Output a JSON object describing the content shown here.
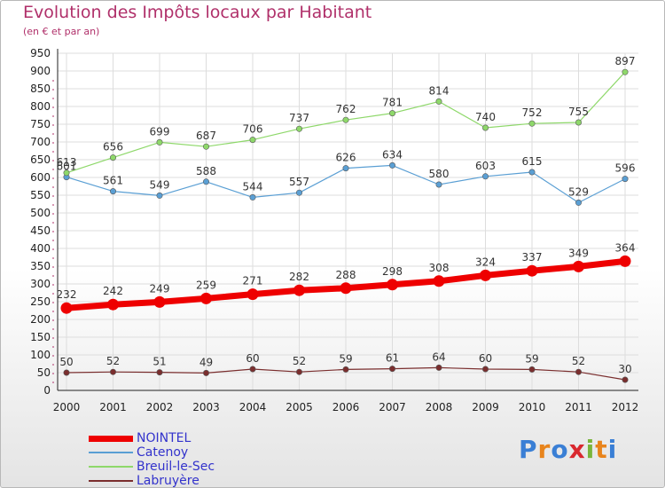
{
  "title": "Evolution des Impôts locaux par Habitant",
  "subtitle": "(en € et par an)",
  "logo": {
    "letters": [
      "P",
      "r",
      "o",
      "x",
      "i",
      "t",
      "i"
    ],
    "colors": [
      "#3a7fd5",
      "#e8841c",
      "#3a7fd5",
      "#d9282f",
      "#7ab53b",
      "#e8841c",
      "#3a7fd5"
    ]
  },
  "chart_data": {
    "type": "line",
    "title": "Evolution des Impôts locaux par Habitant",
    "subtitle": "(en € et par an)",
    "x": [
      "2000",
      "2001",
      "2002",
      "2003",
      "2004",
      "2005",
      "2006",
      "2007",
      "2008",
      "2009",
      "2010",
      "2011",
      "2012"
    ],
    "ylim": [
      0,
      950
    ],
    "yticks": [
      0,
      50,
      100,
      150,
      200,
      250,
      300,
      350,
      400,
      450,
      500,
      550,
      600,
      650,
      700,
      750,
      800,
      850,
      900,
      950
    ],
    "grid": true,
    "legend_position": "bottom-left",
    "series": [
      {
        "name": "NOINTEL",
        "color": "#ee0000",
        "width": 7,
        "values": [
          232,
          242,
          249,
          259,
          271,
          282,
          288,
          298,
          308,
          324,
          337,
          349,
          364
        ]
      },
      {
        "name": "Catenoy",
        "color": "#5a9fd4",
        "width": 1.2,
        "values": [
          601,
          561,
          549,
          588,
          544,
          557,
          626,
          634,
          580,
          603,
          615,
          529,
          596
        ]
      },
      {
        "name": "Breuil-le-Sec",
        "color": "#8ed86a",
        "width": 1.2,
        "values": [
          613,
          656,
          699,
          687,
          706,
          737,
          762,
          781,
          814,
          740,
          752,
          755,
          897
        ]
      },
      {
        "name": "Labruyère",
        "color": "#7a2e2e",
        "width": 1.2,
        "values": [
          50,
          52,
          51,
          49,
          60,
          52,
          59,
          61,
          64,
          60,
          59,
          52,
          30
        ]
      }
    ]
  }
}
